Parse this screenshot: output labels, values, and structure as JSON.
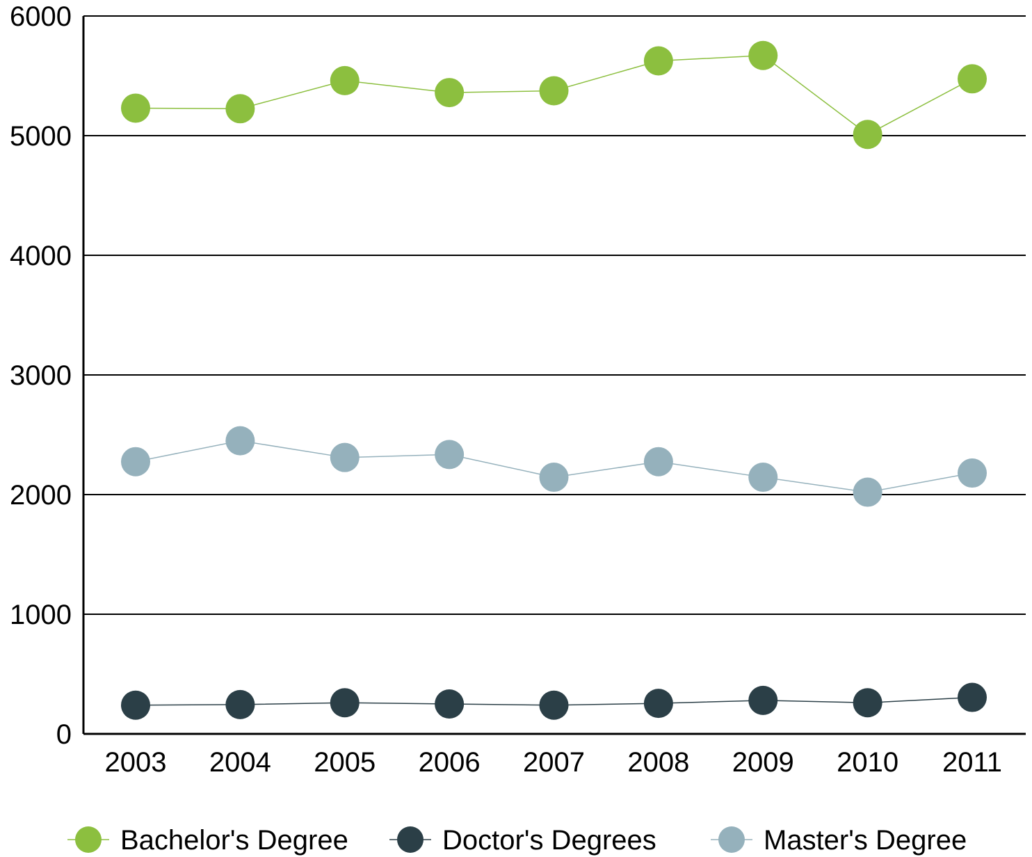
{
  "chart_data": {
    "type": "line",
    "title": "",
    "xlabel": "",
    "ylabel": "",
    "categories": [
      "2003",
      "2004",
      "2005",
      "2006",
      "2007",
      "2008",
      "2009",
      "2010",
      "2011"
    ],
    "ylim": [
      0,
      6000
    ],
    "yticks": [
      "0",
      "1000",
      "2000",
      "3000",
      "4000",
      "5000",
      "6000"
    ],
    "grid": "horizontal",
    "legend_position": "bottom",
    "series": [
      {
        "name": "Bachelor's Degree",
        "color": "#8cbf3f",
        "values": [
          5230,
          5225,
          5460,
          5360,
          5375,
          5625,
          5670,
          5010,
          5475
        ]
      },
      {
        "name": "Doctor's Degrees",
        "color": "#2b3f47",
        "values": [
          240,
          245,
          260,
          250,
          240,
          255,
          280,
          260,
          305
        ]
      },
      {
        "name": "Master's Degree",
        "color": "#95b1bc",
        "values": [
          2275,
          2450,
          2310,
          2335,
          2145,
          2275,
          2145,
          2020,
          2180
        ]
      }
    ]
  }
}
